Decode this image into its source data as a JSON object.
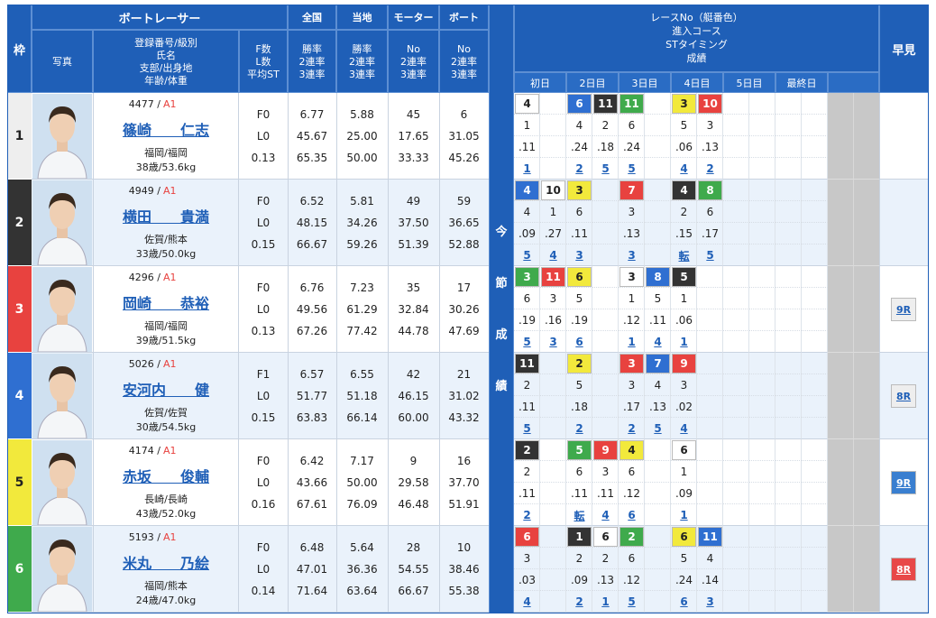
{
  "header": {
    "frame": "枠",
    "photo": "写真",
    "racer": "ボートレーサー",
    "racer_sub": [
      "登録番号/級別",
      "氏名",
      "支部/出身地",
      "年齢/体重"
    ],
    "fl": [
      "F数",
      "L数",
      "平均ST"
    ],
    "national": {
      "title": "全国",
      "sub": [
        "勝率",
        "2連率",
        "3連率"
      ]
    },
    "local": {
      "title": "当地",
      "sub": [
        "勝率",
        "2連率",
        "3連率"
      ]
    },
    "motor": {
      "title": "モーター",
      "sub": [
        "No",
        "2連率",
        "3連率"
      ]
    },
    "boat": {
      "title": "ボート",
      "sub": [
        "No",
        "2連率",
        "3連率"
      ]
    },
    "race": [
      "レースNo（艇番色）",
      "進入コース",
      "STタイミング",
      "成績"
    ],
    "days": [
      "初日",
      "2日目",
      "3日目",
      "4日目",
      "5日目",
      "最終日"
    ],
    "current": [
      "今",
      "節",
      "成",
      "績"
    ],
    "quick": "早見"
  },
  "racers": [
    {
      "frame": "1",
      "frame_color": "#eeeeee",
      "id": "4477 /",
      "class": "A1",
      "name": "篠崎　　仁志",
      "branch": "福岡/福岡",
      "age": "38歳/53.6kg",
      "fl": [
        "F0",
        "L0",
        "0.13"
      ],
      "national": [
        "6.77",
        "45.67",
        "65.35"
      ],
      "local": [
        "5.88",
        "25.00",
        "50.00"
      ],
      "motor": [
        "45",
        "17.65",
        "33.33"
      ],
      "boat": [
        "6",
        "31.05",
        "45.26"
      ],
      "races": [
        {
          "race": "4",
          "color": "#ffffff",
          "course": "1",
          "st": ".11",
          "rank": "1"
        },
        null,
        {
          "race": "6",
          "color": "#2f6fd1",
          "course": "4",
          "st": ".24",
          "rank": "2"
        },
        {
          "race": "11",
          "color": "#333333",
          "course": "2",
          "st": ".18",
          "rank": "5"
        },
        {
          "race": "11",
          "color": "#3faa4c",
          "course": "6",
          "st": ".24",
          "rank": "5"
        },
        null,
        {
          "race": "3",
          "color": "#f2e93c",
          "course": "5",
          "st": ".06",
          "rank": "4"
        },
        {
          "race": "10",
          "color": "#e8423f",
          "course": "3",
          "st": ".13",
          "rank": "2"
        },
        null,
        null,
        null,
        null
      ],
      "quick": null
    },
    {
      "frame": "2",
      "frame_color": "#333333",
      "id": "4949 /",
      "class": "A1",
      "name": "横田　　貴満",
      "branch": "佐賀/熊本",
      "age": "33歳/50.0kg",
      "fl": [
        "F0",
        "L0",
        "0.15"
      ],
      "national": [
        "6.52",
        "48.15",
        "66.67"
      ],
      "local": [
        "5.81",
        "34.26",
        "59.26"
      ],
      "motor": [
        "49",
        "37.50",
        "51.39"
      ],
      "boat": [
        "59",
        "36.65",
        "52.88"
      ],
      "races": [
        {
          "race": "4",
          "color": "#2f6fd1",
          "course": "4",
          "st": ".09",
          "rank": "5"
        },
        {
          "race": "10",
          "color": "#ffffff",
          "course": "1",
          "st": ".27",
          "rank": "4"
        },
        {
          "race": "3",
          "color": "#f2e93c",
          "course": "6",
          "st": ".11",
          "rank": "3"
        },
        null,
        {
          "race": "7",
          "color": "#e8423f",
          "course": "3",
          "st": ".13",
          "rank": "3"
        },
        null,
        {
          "race": "4",
          "color": "#333333",
          "course": "2",
          "st": ".15",
          "rank": "転"
        },
        {
          "race": "8",
          "color": "#3faa4c",
          "course": "6",
          "st": ".17",
          "rank": "5"
        },
        null,
        null,
        null,
        null
      ],
      "quick": null
    },
    {
      "frame": "3",
      "frame_color": "#e8423f",
      "id": "4296 /",
      "class": "A1",
      "name": "岡崎　　恭裕",
      "branch": "福岡/福岡",
      "age": "39歳/51.5kg",
      "fl": [
        "F0",
        "L0",
        "0.13"
      ],
      "national": [
        "6.76",
        "49.56",
        "67.26"
      ],
      "local": [
        "7.23",
        "61.29",
        "77.42"
      ],
      "motor": [
        "35",
        "32.84",
        "44.78"
      ],
      "boat": [
        "17",
        "30.26",
        "47.69"
      ],
      "races": [
        {
          "race": "3",
          "color": "#3faa4c",
          "course": "6",
          "st": ".19",
          "rank": "5"
        },
        {
          "race": "11",
          "color": "#e8423f",
          "course": "3",
          "st": ".16",
          "rank": "3"
        },
        {
          "race": "6",
          "color": "#f2e93c",
          "course": "5",
          "st": ".19",
          "rank": "6"
        },
        null,
        {
          "race": "3",
          "color": "#ffffff",
          "course": "1",
          "st": ".12",
          "rank": "1"
        },
        {
          "race": "8",
          "color": "#2f6fd1",
          "course": "5",
          "st": ".11",
          "rank": "4"
        },
        {
          "race": "5",
          "color": "#333333",
          "course": "1",
          "st": ".06",
          "rank": "1"
        },
        null,
        null,
        null,
        null,
        null
      ],
      "quick": {
        "label": "9R",
        "color": "#eeeeee"
      }
    },
    {
      "frame": "4",
      "frame_color": "#2f6fd1",
      "id": "5026 /",
      "class": "A1",
      "name": "安河内　　健",
      "branch": "佐賀/佐賀",
      "age": "30歳/54.5kg",
      "fl": [
        "F1",
        "L0",
        "0.15"
      ],
      "national": [
        "6.57",
        "51.77",
        "63.83"
      ],
      "local": [
        "6.55",
        "51.18",
        "66.14"
      ],
      "motor": [
        "42",
        "46.15",
        "60.00"
      ],
      "boat": [
        "21",
        "31.02",
        "43.32"
      ],
      "races": [
        {
          "race": "11",
          "color": "#333333",
          "course": "2",
          "st": ".11",
          "rank": "5"
        },
        null,
        {
          "race": "2",
          "color": "#f2e93c",
          "course": "5",
          "st": ".18",
          "rank": "2"
        },
        null,
        {
          "race": "3",
          "color": "#e8423f",
          "course": "3",
          "st": ".17",
          "rank": "2"
        },
        {
          "race": "7",
          "color": "#2f6fd1",
          "course": "4",
          "st": ".13",
          "rank": "5"
        },
        {
          "race": "9",
          "color": "#e8423f",
          "course": "3",
          "st": ".02",
          "rank": "4"
        },
        null,
        null,
        null,
        null,
        null
      ],
      "quick": {
        "label": "8R",
        "color": "#eeeeee"
      }
    },
    {
      "frame": "5",
      "frame_color": "#f2e93c",
      "id": "4174 /",
      "class": "A1",
      "name": "赤坂　　俊輔",
      "branch": "長崎/長崎",
      "age": "43歳/52.0kg",
      "fl": [
        "F0",
        "L0",
        "0.16"
      ],
      "national": [
        "6.42",
        "43.66",
        "67.61"
      ],
      "local": [
        "7.17",
        "50.00",
        "76.09"
      ],
      "motor": [
        "9",
        "29.58",
        "46.48"
      ],
      "boat": [
        "16",
        "37.70",
        "51.91"
      ],
      "races": [
        {
          "race": "2",
          "color": "#333333",
          "course": "2",
          "st": ".11",
          "rank": "2"
        },
        null,
        {
          "race": "5",
          "color": "#3faa4c",
          "course": "6",
          "st": ".11",
          "rank": "転"
        },
        {
          "race": "9",
          "color": "#e8423f",
          "course": "3",
          "st": ".11",
          "rank": "4"
        },
        {
          "race": "4",
          "color": "#f2e93c",
          "course": "6",
          "st": ".12",
          "rank": "6"
        },
        null,
        {
          "race": "6",
          "color": "#ffffff",
          "course": "1",
          "st": ".09",
          "rank": "1"
        },
        null,
        null,
        null,
        null,
        null
      ],
      "quick": {
        "label": "9R",
        "color": "#3a7fd0"
      }
    },
    {
      "frame": "6",
      "frame_color": "#3faa4c",
      "id": "5193 /",
      "class": "A1",
      "name": "米丸　　乃絵",
      "branch": "福岡/熊本",
      "age": "24歳/47.0kg",
      "fl": [
        "F0",
        "L0",
        "0.14"
      ],
      "national": [
        "6.48",
        "47.01",
        "71.64"
      ],
      "local": [
        "5.64",
        "36.36",
        "63.64"
      ],
      "motor": [
        "28",
        "54.55",
        "66.67"
      ],
      "boat": [
        "10",
        "38.46",
        "55.38"
      ],
      "races": [
        {
          "race": "6",
          "color": "#e8423f",
          "course": "3",
          "st": ".03",
          "rank": "4"
        },
        null,
        {
          "race": "1",
          "color": "#333333",
          "course": "2",
          "st": ".09",
          "rank": "2"
        },
        {
          "race": "6",
          "color": "#ffffff",
          "course": "2",
          "st": ".13",
          "rank": "1"
        },
        {
          "race": "2",
          "color": "#3faa4c",
          "course": "6",
          "st": ".12",
          "rank": "5"
        },
        null,
        {
          "race": "6",
          "color": "#f2e93c",
          "course": "5",
          "st": ".24",
          "rank": "6"
        },
        {
          "race": "11",
          "color": "#2f6fd1",
          "course": "4",
          "st": ".14",
          "rank": "3"
        },
        null,
        null,
        null,
        null
      ],
      "quick": {
        "label": "8R",
        "color": "#e84848"
      }
    }
  ]
}
